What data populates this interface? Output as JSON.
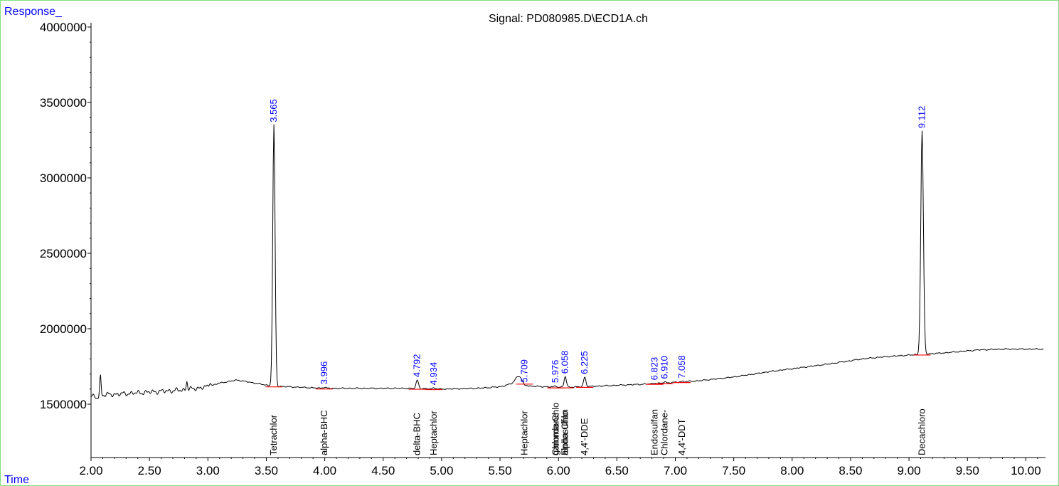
{
  "chart_data": {
    "type": "line",
    "title": "Signal: PD080985.D\\ECD1A.ch",
    "ylabel": "Response_",
    "xlabel": "Time",
    "xlim": [
      2.0,
      10.15
    ],
    "ylim": [
      1130000,
      4030000
    ],
    "x_ticks": [
      "2.00",
      "2.50",
      "3.00",
      "3.50",
      "4.00",
      "4.50",
      "5.00",
      "5.50",
      "6.00",
      "6.50",
      "7.00",
      "7.50",
      "8.00",
      "8.50",
      "9.00",
      "9.50",
      "10.00"
    ],
    "y_ticks": [
      "1500000",
      "2000000",
      "2500000",
      "3000000",
      "3500000",
      "4000000"
    ],
    "grid": false,
    "baseline": [
      [
        2.0,
        1555000
      ],
      [
        2.05,
        1540000
      ],
      [
        2.08,
        1560000
      ],
      [
        2.2,
        1565000
      ],
      [
        2.5,
        1580000
      ],
      [
        2.8,
        1595000
      ],
      [
        3.0,
        1615000
      ],
      [
        3.1,
        1640000
      ],
      [
        3.25,
        1660000
      ],
      [
        3.4,
        1640000
      ],
      [
        3.55,
        1620000
      ],
      [
        3.7,
        1615000
      ],
      [
        4.0,
        1605000
      ],
      [
        4.5,
        1605000
      ],
      [
        4.7,
        1605000
      ],
      [
        5.0,
        1600000
      ],
      [
        5.3,
        1605000
      ],
      [
        5.5,
        1615000
      ],
      [
        5.6,
        1635000
      ],
      [
        5.68,
        1650000
      ],
      [
        5.75,
        1620000
      ],
      [
        6.0,
        1612000
      ],
      [
        6.2,
        1615000
      ],
      [
        6.5,
        1625000
      ],
      [
        6.8,
        1635000
      ],
      [
        7.0,
        1645000
      ],
      [
        7.2,
        1655000
      ],
      [
        7.5,
        1680000
      ],
      [
        7.8,
        1715000
      ],
      [
        8.0,
        1735000
      ],
      [
        8.3,
        1765000
      ],
      [
        8.6,
        1800000
      ],
      [
        8.8,
        1815000
      ],
      [
        9.0,
        1825000
      ],
      [
        9.3,
        1840000
      ],
      [
        9.6,
        1860000
      ],
      [
        9.8,
        1865000
      ],
      [
        10.15,
        1865000
      ]
    ],
    "peaks": [
      {
        "rt": 3.565,
        "apex": 3350000,
        "width": 0.014
      },
      {
        "rt": 3.996,
        "apex": 1612000,
        "width": 0.02
      },
      {
        "rt": 4.792,
        "apex": 1660000,
        "width": 0.015
      },
      {
        "rt": 4.934,
        "apex": 1607000,
        "width": 0.02
      },
      {
        "rt": 5.655,
        "apex": 1685000,
        "width": 0.035
      },
      {
        "rt": 5.709,
        "apex": 1625000,
        "width": 0.02
      },
      {
        "rt": 5.976,
        "apex": 1622000,
        "width": 0.015
      },
      {
        "rt": 6.058,
        "apex": 1683000,
        "width": 0.014
      },
      {
        "rt": 6.225,
        "apex": 1680000,
        "width": 0.014
      },
      {
        "rt": 6.823,
        "apex": 1640000,
        "width": 0.014
      },
      {
        "rt": 6.91,
        "apex": 1648000,
        "width": 0.014
      },
      {
        "rt": 7.058,
        "apex": 1652000,
        "width": 0.014
      },
      {
        "rt": 9.112,
        "apex": 3310000,
        "width": 0.016
      },
      {
        "rt": 2.08,
        "apex": 1690000,
        "width": 0.008
      },
      {
        "rt": 2.82,
        "apex": 1655000,
        "width": 0.008
      },
      {
        "rt": 3.02,
        "apex": 1640000,
        "width": 0.01
      }
    ],
    "annotations": [
      {
        "rt": 3.565,
        "label": "3.565"
      },
      {
        "rt": 3.996,
        "label": "3.996"
      },
      {
        "rt": 4.792,
        "label": "4.792"
      },
      {
        "rt": 4.934,
        "label": "4.934"
      },
      {
        "rt": 5.709,
        "label": "5.709"
      },
      {
        "rt": 5.976,
        "label": "5.976"
      },
      {
        "rt": 6.058,
        "label": "6.058"
      },
      {
        "rt": 6.225,
        "label": "6.225"
      },
      {
        "rt": 6.823,
        "label": "6.823"
      },
      {
        "rt": 6.91,
        "label": "6.910"
      },
      {
        "rt": 7.058,
        "label": "7.058"
      },
      {
        "rt": 9.112,
        "label": "9.112"
      }
    ],
    "compounds": [
      {
        "rt": 3.565,
        "name": "Tetrachlor"
      },
      {
        "rt": 3.996,
        "name": "alpha-BHC"
      },
      {
        "rt": 4.792,
        "name": "delta-BHC"
      },
      {
        "rt": 4.934,
        "name": "Heptachlor"
      },
      {
        "rt": 5.709,
        "name": "Heptachlor"
      },
      {
        "rt": 5.976,
        "name": "Chlordane"
      },
      {
        "rt": 5.976,
        "name": "gamma-Chlo"
      },
      {
        "rt": 6.058,
        "name": "alpha-Chlo"
      },
      {
        "rt": 6.058,
        "name": "Endosulfan"
      },
      {
        "rt": 6.225,
        "name": "4,4'-DDE"
      },
      {
        "rt": 6.823,
        "name": "Endosulfan"
      },
      {
        "rt": 6.91,
        "name": "Chlordane-"
      },
      {
        "rt": 7.058,
        "name": "4,4'-DDT"
      },
      {
        "rt": 9.112,
        "name": "Decachloro"
      }
    ],
    "colors": {
      "trace": "#000000",
      "rt_label": "#0000ff",
      "axis_title": "#0000ff",
      "integration_mark": "#ff0000",
      "frame": "#7fe07f"
    }
  }
}
